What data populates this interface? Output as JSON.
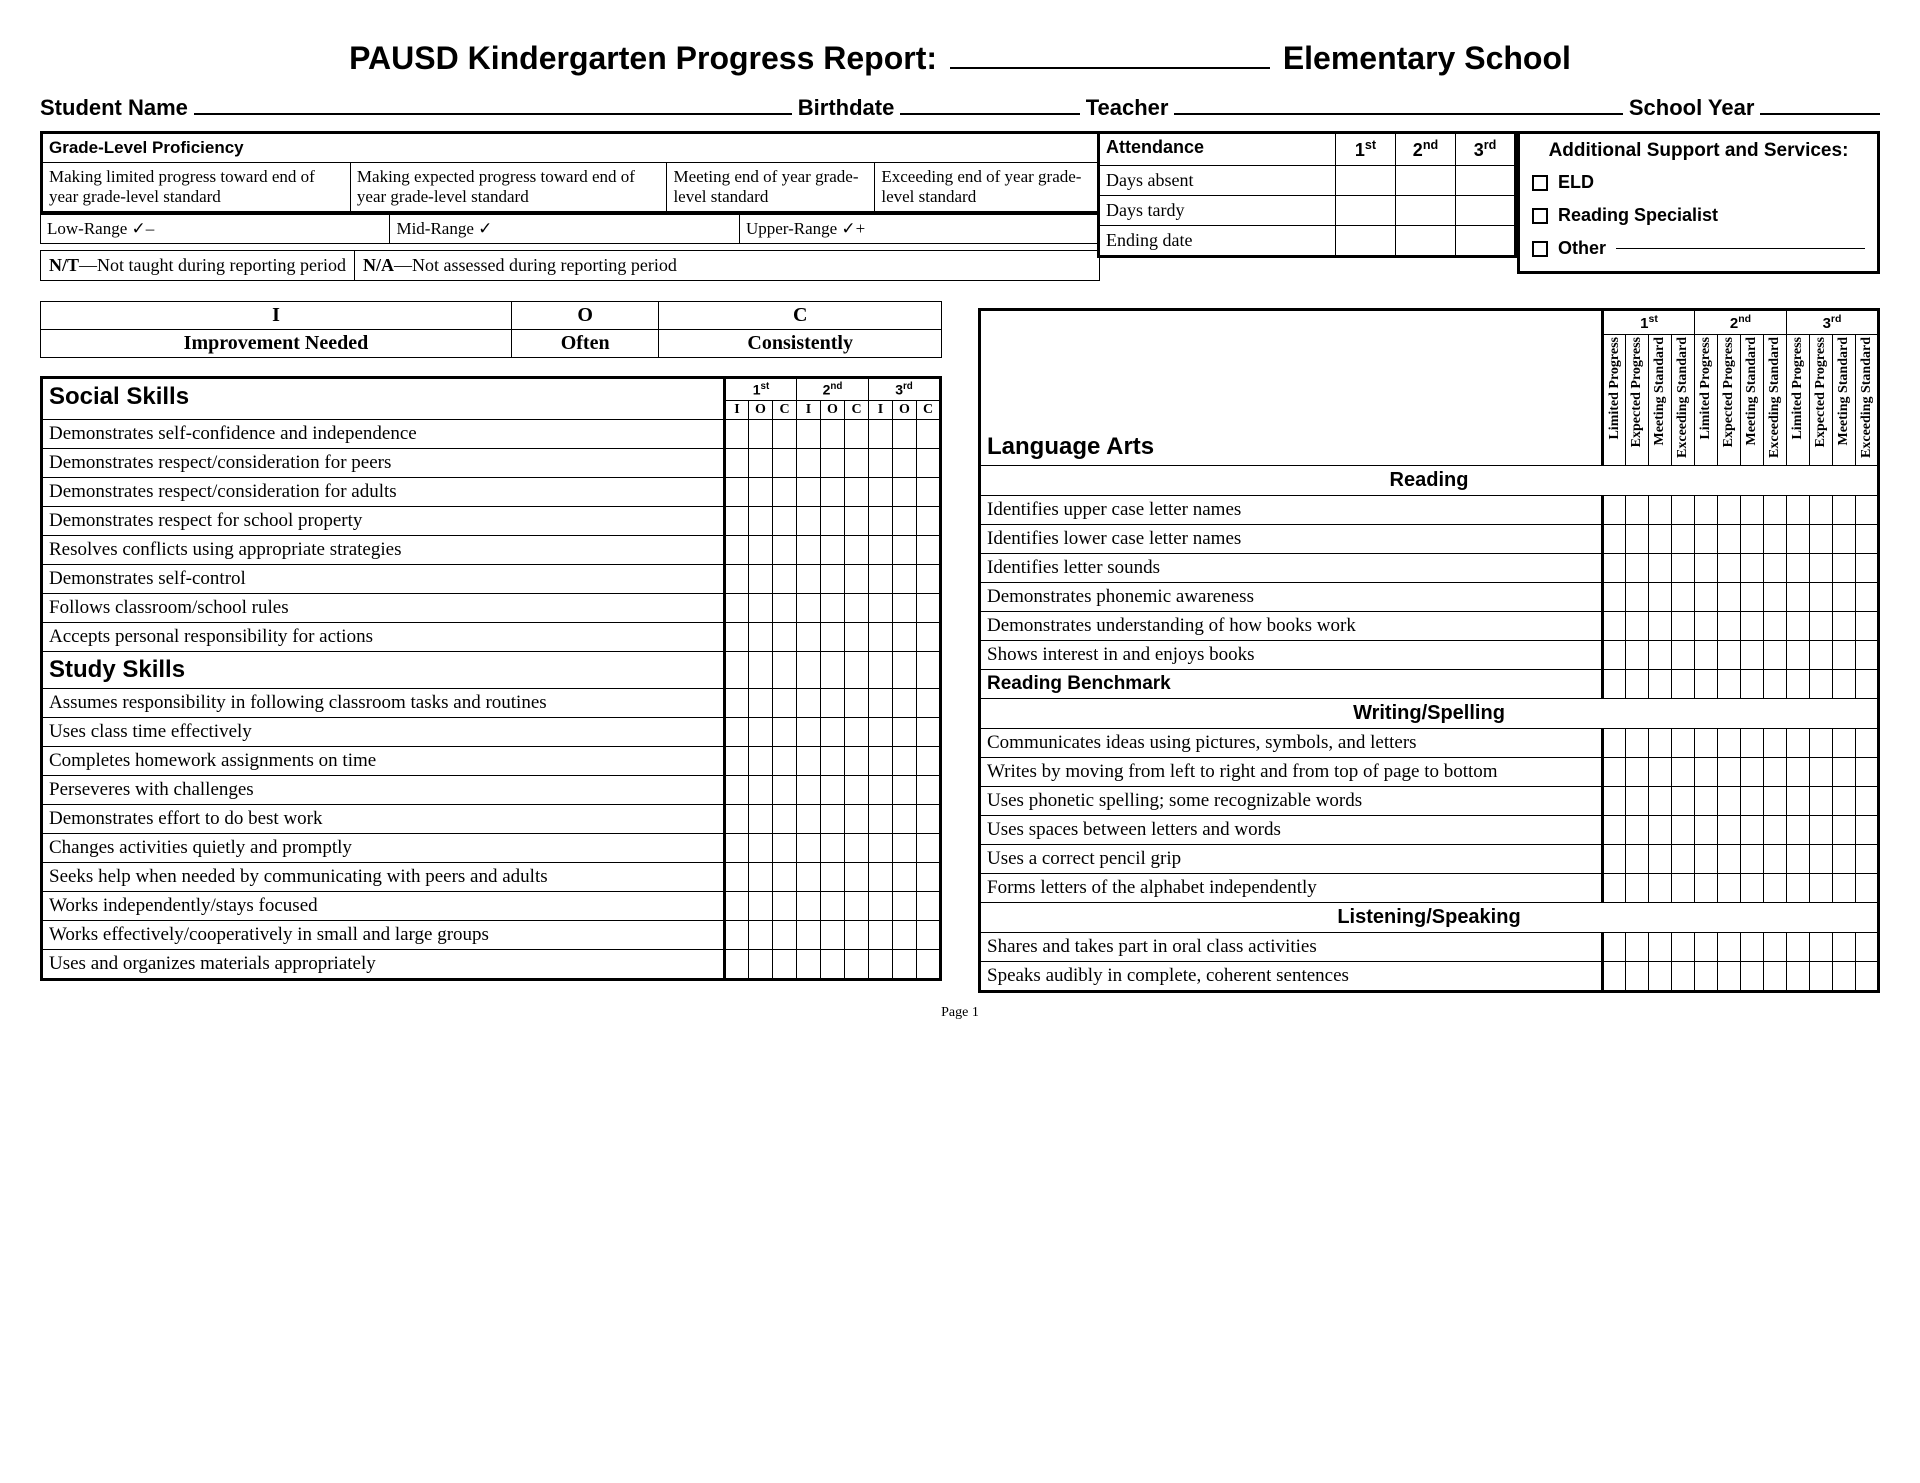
{
  "title_left": "PAUSD Kindergarten Progress Report:",
  "title_right": "Elementary School",
  "labels": {
    "student": "Student Name",
    "birthdate": "Birthdate",
    "teacher": "Teacher",
    "schoolyear": "School Year"
  },
  "proficiency": {
    "header": "Grade-Level Proficiency",
    "cells": [
      "Making limited progress toward end of year grade-level standard",
      "Making expected progress toward end of year grade-level standard",
      "Meeting end of year grade-level standard",
      "Exceeding end of year grade-level standard"
    ],
    "ranges": [
      "Low-Range  ✓–",
      "Mid-Range  ✓",
      "Upper-Range  ✓+"
    ]
  },
  "attendance": {
    "header": "Attendance",
    "periods": [
      "1",
      "2",
      "3"
    ],
    "period_suffix": [
      "st",
      "nd",
      "rd"
    ],
    "rows": [
      "Days absent",
      "Days tardy",
      "Ending date"
    ]
  },
  "services": {
    "header": "Additional Support and Services:",
    "items": [
      "ELD",
      "Reading Specialist",
      "Other"
    ]
  },
  "notes": {
    "nt": "N/T—Not taught during reporting period",
    "na": "N/A—Not assessed during reporting period"
  },
  "ioc": {
    "codes": [
      "I",
      "O",
      "C"
    ],
    "labels": [
      "Improvement Needed",
      "Often",
      "Consistently"
    ]
  },
  "social": {
    "header": "Social Skills",
    "periods": [
      "1",
      "2",
      "3"
    ],
    "period_suffix": [
      "st",
      "nd",
      "rd"
    ],
    "cols": [
      "I",
      "O",
      "C"
    ],
    "rows": [
      "Demonstrates self-confidence and independence",
      "Demonstrates respect/consideration for peers",
      "Demonstrates respect/consideration for adults",
      "Demonstrates respect for school property",
      "Resolves conflicts using appropriate strategies",
      "Demonstrates self-control",
      "Follows classroom/school rules",
      "Accepts personal responsibility for actions"
    ]
  },
  "study": {
    "header": "Study Skills",
    "rows": [
      "Assumes responsibility in following classroom tasks and routines",
      "Uses class time effectively",
      "Completes homework assignments on time",
      "Perseveres with challenges",
      "Demonstrates effort to do best work",
      "Changes activities quietly and promptly",
      "Seeks help when needed by communicating with peers and adults",
      "Works independently/stays focused",
      "Works effectively/cooperatively in small and large groups",
      "Uses and organizes materials appropriately"
    ]
  },
  "language_arts": {
    "header": "Language Arts",
    "periods": [
      "1",
      "2",
      "3"
    ],
    "period_suffix": [
      "st",
      "nd",
      "rd"
    ],
    "col_headers": [
      "Limited Progress",
      "Expected Progress",
      "Meeting Standard",
      "Exceeding Standard"
    ],
    "sections": [
      {
        "title": "Reading",
        "rows": [
          "Identifies upper case letter names",
          "Identifies lower case letter names",
          "Identifies letter sounds",
          "Demonstrates phonemic awareness",
          "Demonstrates understanding of how books work",
          "Shows interest in and enjoys books"
        ],
        "benchmark": "Reading Benchmark"
      },
      {
        "title": "Writing/Spelling",
        "rows": [
          "Communicates ideas using pictures, symbols, and letters",
          "Writes by moving from left to right and from top of page to bottom",
          "Uses phonetic spelling; some recognizable words",
          "Uses spaces between letters and words",
          "Uses a correct pencil grip",
          "Forms letters of the alphabet independently"
        ]
      },
      {
        "title": "Listening/Speaking",
        "rows": [
          "Shares and takes part in oral class activities",
          "Speaks audibly in complete, coherent sentences"
        ]
      }
    ]
  },
  "page_num": "Page 1"
}
